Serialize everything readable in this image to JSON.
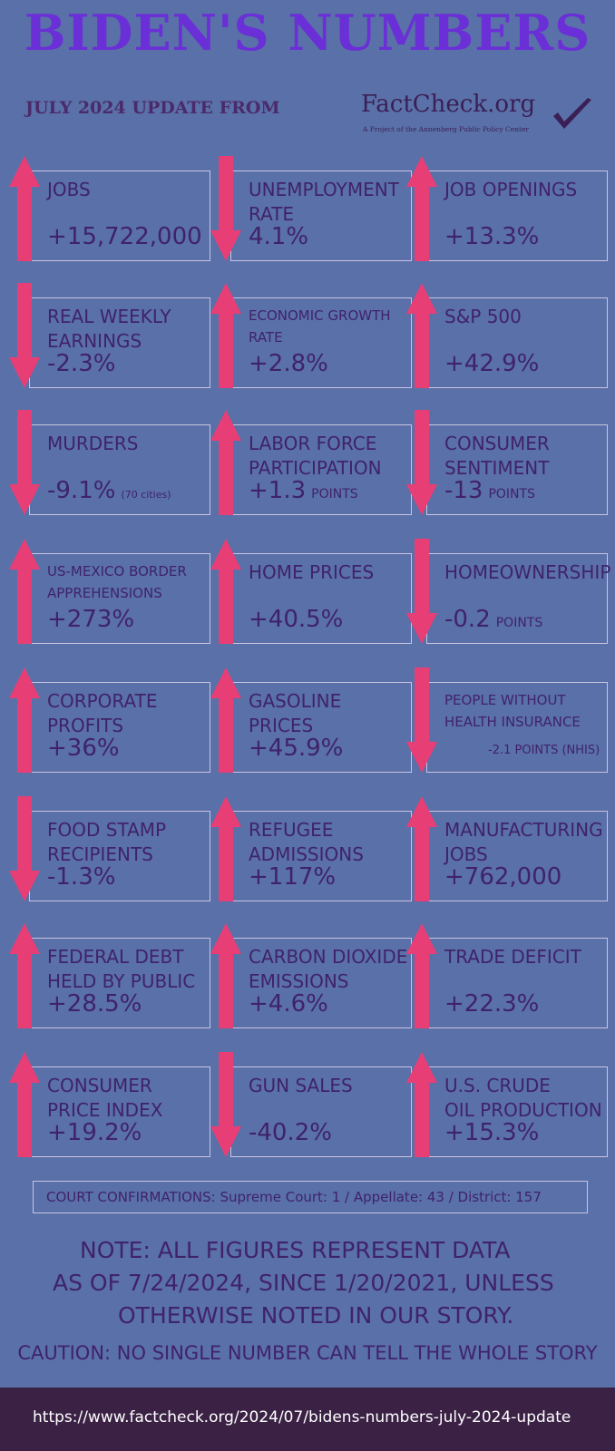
{
  "header": {
    "title": "BIDEN'S NUMBERS",
    "subtitle": "JULY 2024 UPDATE FROM",
    "logo_text": "FactCheck.org",
    "logo_tagline": "A Project of the Annenberg Public Policy Center"
  },
  "colors": {
    "background": "#5a70a8",
    "title": "#6a2fd6",
    "arrow": "#e83e76",
    "text": "#3f2368",
    "footer": "#3b2245"
  },
  "cards": [
    {
      "label": "JOBS",
      "value": "+15,722,000",
      "suffix": "",
      "direction": "up"
    },
    {
      "label": "UNEMPLOYMENT\nRATE",
      "value": "4.1%",
      "suffix": "",
      "direction": "down"
    },
    {
      "label": "JOB OPENINGS",
      "value": "+13.3%",
      "suffix": "",
      "direction": "up"
    },
    {
      "label": "REAL WEEKLY\nEARNINGS",
      "value": "-2.3%",
      "suffix": "",
      "direction": "down"
    },
    {
      "label": "ECONOMIC GROWTH\nRATE",
      "value": "+2.8%",
      "suffix": "",
      "direction": "up"
    },
    {
      "label": "S&P 500",
      "value": "+42.9%",
      "suffix": "",
      "direction": "up"
    },
    {
      "label": "MURDERS",
      "value": "-9.1%",
      "suffix": "(70 cities)",
      "direction": "down"
    },
    {
      "label": "LABOR FORCE\nPARTICIPATION",
      "value": "+1.3",
      "suffix": "POINTS",
      "direction": "up"
    },
    {
      "label": "CONSUMER\nSENTIMENT",
      "value": "-13",
      "suffix": "POINTS",
      "direction": "down"
    },
    {
      "label": "US-MEXICO BORDER\nAPPREHENSIONS",
      "value": "+273%",
      "suffix": "",
      "direction": "up"
    },
    {
      "label": "HOME PRICES",
      "value": "+40.5%",
      "suffix": "",
      "direction": "up"
    },
    {
      "label": "HOMEOWNERSHIP",
      "value": "-0.2",
      "suffix": "POINTS",
      "direction": "down"
    },
    {
      "label": "CORPORATE\nPROFITS",
      "value": "+36%",
      "suffix": "",
      "direction": "up"
    },
    {
      "label": "GASOLINE\nPRICES",
      "value": "+45.9%",
      "suffix": "",
      "direction": "up"
    },
    {
      "label": "PEOPLE WITHOUT\nHEALTH INSURANCE",
      "value": "",
      "suffix": "",
      "extra": "-2.1 POINTS (NHIS)",
      "direction": "down"
    },
    {
      "label": "FOOD STAMP\nRECIPIENTS",
      "value": "-1.3%",
      "suffix": "",
      "direction": "down"
    },
    {
      "label": "REFUGEE\nADMISSIONS",
      "value": "+117%",
      "suffix": "",
      "direction": "up"
    },
    {
      "label": "MANUFACTURING\nJOBS",
      "value": "+762,000",
      "suffix": "",
      "direction": "up"
    },
    {
      "label": "FEDERAL DEBT\nHELD BY PUBLIC",
      "value": "+28.5%",
      "suffix": "",
      "direction": "up"
    },
    {
      "label": "CARBON DIOXIDE\nEMISSIONS",
      "value": "+4.6%",
      "suffix": "",
      "direction": "up"
    },
    {
      "label": "TRADE DEFICIT",
      "value": "+22.3%",
      "suffix": "",
      "direction": "up"
    },
    {
      "label": "CONSUMER\nPRICE INDEX",
      "value": "+19.2%",
      "suffix": "",
      "direction": "up"
    },
    {
      "label": "GUN SALES",
      "value": "-40.2%",
      "suffix": "",
      "direction": "down"
    },
    {
      "label": "U.S. CRUDE\nOIL PRODUCTION",
      "value": "+15.3%",
      "suffix": "",
      "direction": "up"
    }
  ],
  "court": "COURT CONFIRMATIONS:  Supreme Court: 1 / Appellate: 43 / District: 157",
  "note": {
    "line1": "NOTE:  ALL FIGURES REPRESENT DATA",
    "line2": "AS OF 7/24/2024, SINCE 1/20/2021, UNLESS",
    "line3": "OTHERWISE NOTED IN OUR STORY."
  },
  "caution": "CAUTION: NO SINGLE NUMBER CAN TELL THE WHOLE STORY",
  "footer_url": "https://www.factcheck.org/2024/07/bidens-numbers-july-2024-update"
}
